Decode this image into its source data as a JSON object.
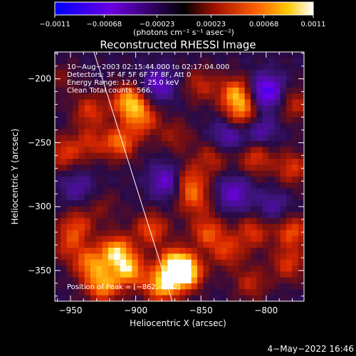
{
  "chart_data": {
    "type": "heatmap",
    "title": "Reconstructed RHESSI Image",
    "xlabel": "Heliocentric X (arcsec)",
    "ylabel": "Heliocentric Y (arcsec)",
    "xlim": [
      -962,
      -771
    ],
    "ylim": [
      -374,
      -179
    ],
    "x_ticks": [
      -950,
      -900,
      -850,
      -800
    ],
    "y_ticks": [
      -200,
      -250,
      -300,
      -350
    ],
    "x_tick_labels": [
      "−950",
      "−900",
      "−850",
      "−800"
    ],
    "y_tick_labels": [
      "−200",
      "−250",
      "−300",
      "−350"
    ],
    "colorbar": {
      "range": [
        -0.0011,
        0.0011
      ],
      "tick_labels": [
        "−0.0011",
        "−0.00068",
        "−0.00023",
        "0.00023",
        "0.00068",
        "0.0011"
      ],
      "unit_label": "(photons cm⁻² s⁻¹ asec⁻²)"
    },
    "annotations": [
      "10−Aug−2003 02:15:44.000 to 02:17:04.000",
      "Detectors: 3F 4F 5F 6F 7F 8F, Att 0",
      "Energy Range: 12.0 − 25.0 keV",
      "Clean    Total counts: 566.",
      "Position of Peak = [−862,−352]"
    ],
    "peak_position": [
      -862,
      -352
    ],
    "limb_line": {
      "x": [
        -932,
        -872
      ],
      "y": [
        -179,
        -374
      ]
    },
    "blobs": [
      {
        "x": -915,
        "y": -335,
        "v": 0.0009
      },
      {
        "x": -905,
        "y": -350,
        "v": 0.00085
      },
      {
        "x": -935,
        "y": -345,
        "v": 0.0007
      },
      {
        "x": -888,
        "y": -318,
        "v": 0.0006
      },
      {
        "x": -870,
        "y": -345,
        "v": 0.0009
      },
      {
        "x": -862,
        "y": -352,
        "v": 0.0011
      },
      {
        "x": -880,
        "y": -362,
        "v": 0.0009
      },
      {
        "x": -925,
        "y": -362,
        "v": 0.0008
      },
      {
        "x": -905,
        "y": -218,
        "v": 0.0009
      },
      {
        "x": -895,
        "y": -232,
        "v": 0.0006
      },
      {
        "x": -912,
        "y": -250,
        "v": 0.0007
      },
      {
        "x": -935,
        "y": -225,
        "v": 0.0005
      },
      {
        "x": -935,
        "y": -250,
        "v": 0.0004
      },
      {
        "x": -955,
        "y": -258,
        "v": 0.0005
      },
      {
        "x": -945,
        "y": -315,
        "v": 0.0005
      },
      {
        "x": -952,
        "y": -330,
        "v": 0.0004
      },
      {
        "x": -823,
        "y": -212,
        "v": 0.0008
      },
      {
        "x": -818,
        "y": -227,
        "v": 0.0006
      },
      {
        "x": -850,
        "y": -205,
        "v": 0.0004
      },
      {
        "x": -842,
        "y": -262,
        "v": 0.0004
      },
      {
        "x": -808,
        "y": -262,
        "v": 0.0005
      },
      {
        "x": -860,
        "y": -280,
        "v": 0.0006
      },
      {
        "x": -855,
        "y": -295,
        "v": 0.0005
      },
      {
        "x": -845,
        "y": -320,
        "v": 0.0006
      },
      {
        "x": -830,
        "y": -335,
        "v": 0.0005
      },
      {
        "x": -810,
        "y": -320,
        "v": 0.0005
      },
      {
        "x": -780,
        "y": -320,
        "v": 0.0006
      },
      {
        "x": -783,
        "y": -345,
        "v": 0.0005
      },
      {
        "x": -812,
        "y": -360,
        "v": 0.0004
      },
      {
        "x": -778,
        "y": -220,
        "v": 0.0004
      },
      {
        "x": -780,
        "y": -270,
        "v": 0.0005
      },
      {
        "x": -870,
        "y": -245,
        "v": 0.0003
      },
      {
        "x": -830,
        "y": -245,
        "v": -0.0004
      },
      {
        "x": -800,
        "y": -210,
        "v": -0.0008
      },
      {
        "x": -875,
        "y": -280,
        "v": -0.0006
      },
      {
        "x": -883,
        "y": -205,
        "v": -0.0005
      },
      {
        "x": -825,
        "y": -290,
        "v": -0.0005
      },
      {
        "x": -945,
        "y": -285,
        "v": -0.0003
      },
      {
        "x": -795,
        "y": -300,
        "v": -0.0003
      },
      {
        "x": -805,
        "y": -240,
        "v": -0.0004
      },
      {
        "x": -958,
        "y": -200,
        "v": 0.0002
      },
      {
        "x": -925,
        "y": -300,
        "v": 0.0002
      }
    ]
  },
  "footer": {
    "date": "4−May−2022 16:46"
  }
}
